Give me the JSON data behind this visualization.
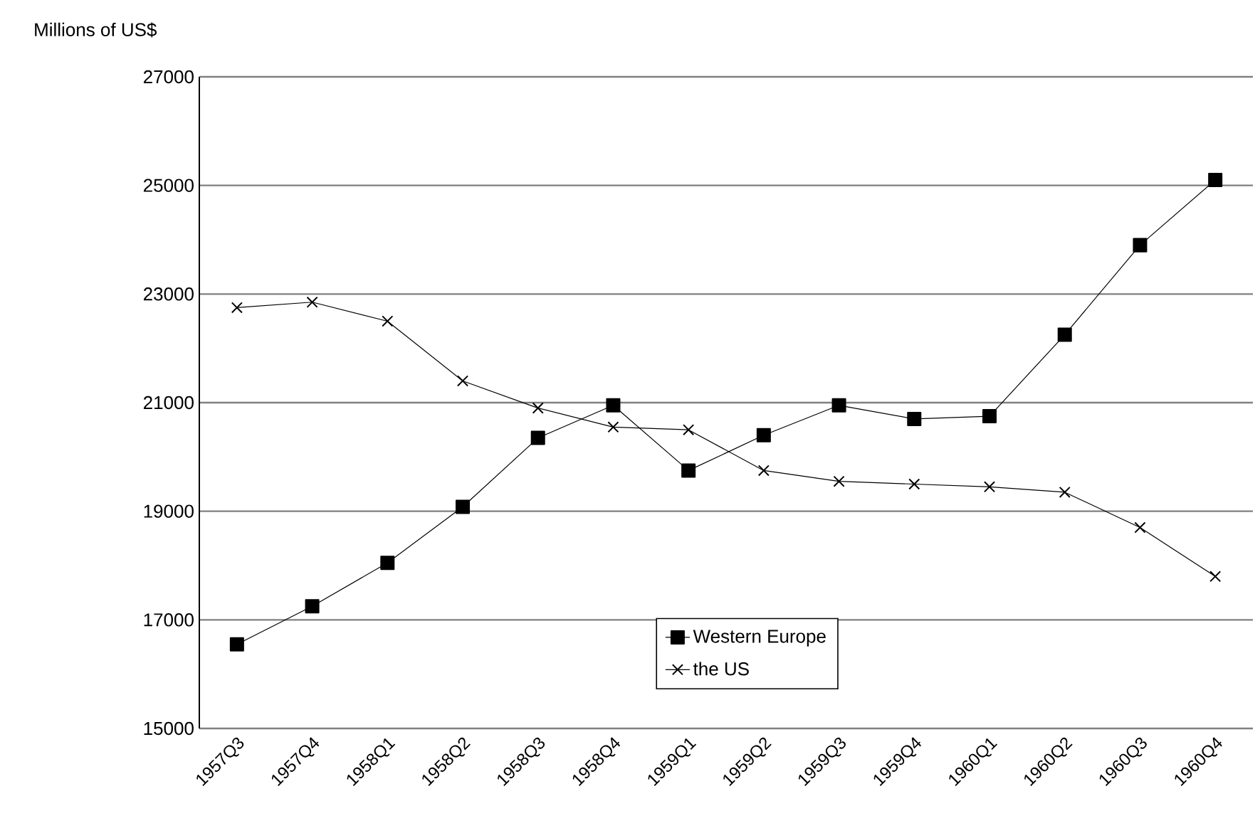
{
  "chart_data": {
    "type": "line",
    "ylabel": "Millions of US$",
    "categories": [
      "1957Q3",
      "1957Q4",
      "1958Q1",
      "1958Q2",
      "1958Q3",
      "1958Q4",
      "1959Q1",
      "1959Q2",
      "1959Q3",
      "1959Q4",
      "1960Q1",
      "1960Q2",
      "1960Q3",
      "1960Q4"
    ],
    "series": [
      {
        "name": "Western Europe",
        "color": "#000000",
        "marker": "square",
        "values": [
          16550,
          17250,
          18050,
          19080,
          20350,
          20950,
          19750,
          20400,
          20950,
          20700,
          20750,
          22250,
          23900,
          25100
        ]
      },
      {
        "name": "the US",
        "color": "#000000",
        "marker": "cross",
        "values": [
          22750,
          22850,
          22500,
          21400,
          20900,
          20550,
          20500,
          19750,
          19550,
          19500,
          19450,
          19350,
          18700,
          17800
        ]
      }
    ],
    "ylim": [
      15000,
      27000
    ],
    "yticks": [
      15000,
      17000,
      19000,
      21000,
      23000,
      25000,
      27000
    ],
    "grid": "y",
    "legend": "bottom",
    "line_style": "solid"
  }
}
